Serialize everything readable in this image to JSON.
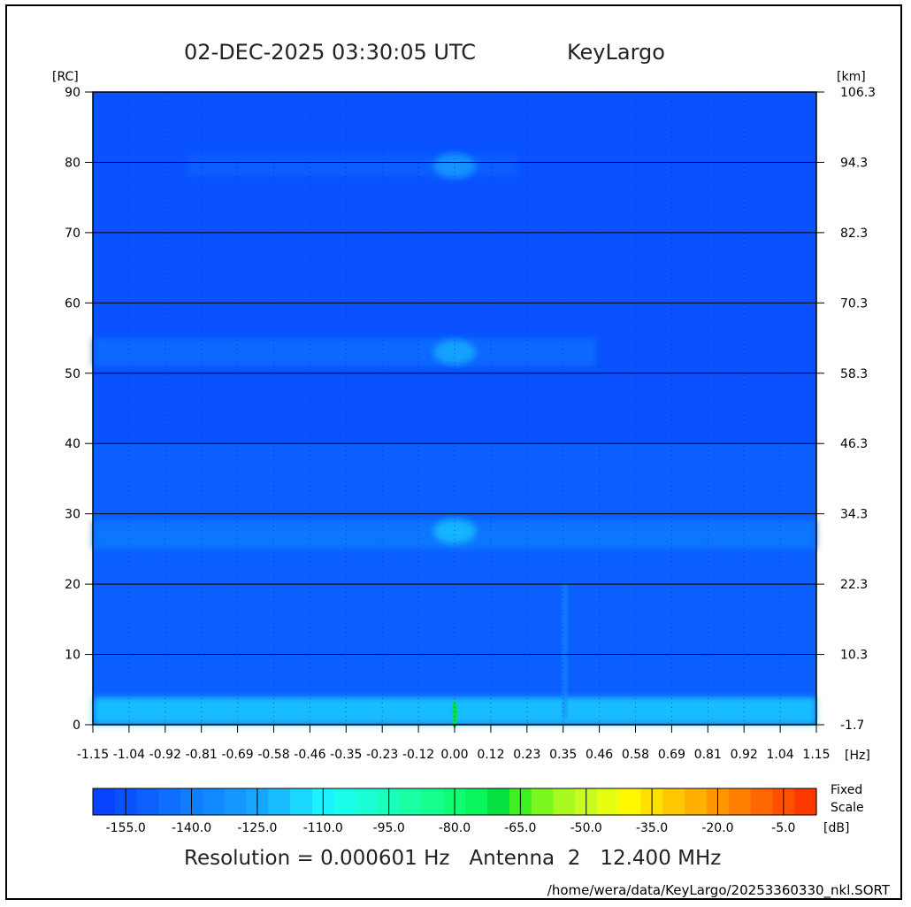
{
  "header": {
    "datetime": "02-DEC-2025 03:30:05 UTC",
    "station": "KeyLargo"
  },
  "chart_data": {
    "type": "heatmap",
    "title": "02-DEC-2025 03:30:05 UTC        KeyLargo",
    "xlabel": "[Hz]",
    "ylabel": "[RC]",
    "y2label": "[km]",
    "xlim": [
      -1.15,
      1.15
    ],
    "ylim": [
      0,
      90
    ],
    "y2lim": [
      -1.7,
      106.3
    ],
    "x_ticks": [
      "-1.15",
      "-1.04",
      "-0.92",
      "-0.81",
      "-0.69",
      "-0.58",
      "-0.46",
      "-0.35",
      "-0.23",
      "-0.12",
      "0.00",
      "0.12",
      "0.23",
      "0.35",
      "0.46",
      "0.58",
      "0.69",
      "0.81",
      "0.92",
      "1.04",
      "1.15"
    ],
    "y_ticks": [
      0,
      10,
      20,
      30,
      40,
      50,
      60,
      70,
      80,
      90
    ],
    "y2_ticks": [
      "-1.7",
      "10.3",
      "22.3",
      "34.3",
      "46.3",
      "58.3",
      "70.3",
      "82.3",
      "94.3",
      "106.3"
    ],
    "grid": "horizontal lines at each y tick",
    "background_level_db": -155,
    "features": [
      {
        "desc": "bright band near range 0",
        "x_range": [
          -1.15,
          1.15
        ],
        "y_range": [
          0,
          4
        ],
        "level_db": -115
      },
      {
        "desc": "noise increasing toward low range",
        "x_range": [
          -1.15,
          1.15
        ],
        "y_range": [
          4,
          40
        ],
        "level_db": -145
      },
      {
        "desc": "echo band",
        "x_range": [
          -1.15,
          1.15
        ],
        "y_range": [
          25,
          29
        ],
        "level_db": -140
      },
      {
        "desc": "echo band",
        "x_range": [
          -1.15,
          0.45
        ],
        "y_range": [
          51,
          55
        ],
        "level_db": -145
      },
      {
        "desc": "weak echo band",
        "x_range": [
          -0.85,
          0.2
        ],
        "y_range": [
          78,
          81
        ],
        "level_db": -148
      },
      {
        "desc": "central peak",
        "x": 0.0,
        "y": 27.5,
        "level_db": -120
      },
      {
        "desc": "central peak",
        "x": 0.0,
        "y": 53,
        "level_db": -125
      },
      {
        "desc": "central peak",
        "x": 0.0,
        "y": 79.5,
        "level_db": -130
      },
      {
        "desc": "DC spike",
        "x": 0.0,
        "y": 1.5,
        "level_db": -70
      },
      {
        "desc": "faint vertical streak",
        "x": 0.35,
        "y_range": [
          1,
          20
        ],
        "level_db": -135
      }
    ],
    "colorbar": {
      "label_top": "Fixed",
      "label_bottom": "Scale",
      "unit": "[dB]",
      "min": -160,
      "max": 0,
      "tick_labels": [
        "-155.0",
        "-140.0",
        "-125.0",
        "-110.0",
        "-95.0",
        "-80.0",
        "-65.0",
        "-50.0",
        "-35.0",
        "-20.0",
        "-5.0"
      ],
      "colors": [
        "#0844FF",
        "#0A52FF",
        "#0C60FF",
        "#0E6EFF",
        "#107CFF",
        "#128AFF",
        "#1498FF",
        "#16A8FF",
        "#18BCFF",
        "#1AD8FF",
        "#1AF4FF",
        "#1AFFEC",
        "#1AFFD4",
        "#1AFFBC",
        "#1AFFA4",
        "#14FF8C",
        "#0EFF74",
        "#08F55C",
        "#04E040",
        "#40F020",
        "#7CF820",
        "#A8FA20",
        "#C8FC20",
        "#E6FE10",
        "#FFF800",
        "#FFE000",
        "#FFC800",
        "#FFB000",
        "#FF9800",
        "#FF8000",
        "#FF6800",
        "#FF5000",
        "#FF3800"
      ]
    }
  },
  "footer": {
    "resolution": "Resolution = 0.000601 Hz   Antenna  2   12.400 MHz",
    "filepath": "/home/wera/data/KeyLargo/20253360330_nkl.SORT"
  }
}
